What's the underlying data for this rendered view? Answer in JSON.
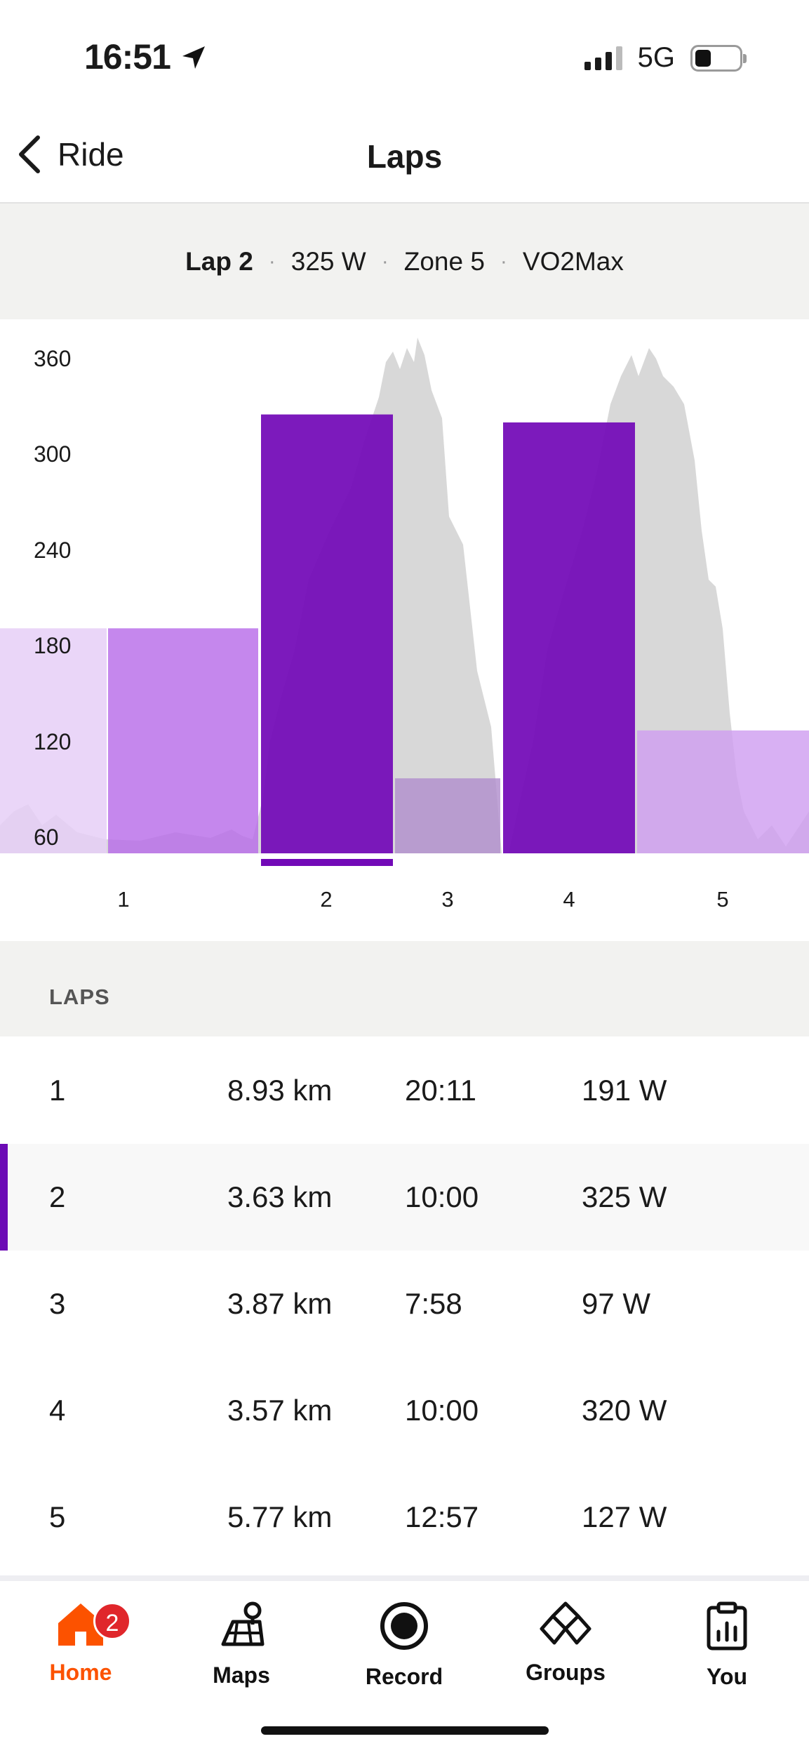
{
  "status_bar": {
    "time": "16:51",
    "network": "5G",
    "battery_level": 0.25
  },
  "header": {
    "back_label": "Ride",
    "title": "Laps"
  },
  "summary": {
    "lap": "Lap 2",
    "power": "325 W",
    "zone": "Zone 5",
    "type": "VO2Max"
  },
  "chart_data": {
    "type": "bar",
    "y_ticks": [
      "360",
      "300",
      "240",
      "180",
      "120",
      "60"
    ],
    "x_ticks": [
      "1",
      "2",
      "3",
      "4",
      "5"
    ],
    "ylim": [
      50,
      360
    ],
    "bars": [
      {
        "label": "1",
        "value": 191,
        "color": "#b86ce9"
      },
      {
        "label": "2",
        "value": 325,
        "color": "#7209b7",
        "selected": true
      },
      {
        "label": "3",
        "value": 97,
        "color": "#b18fcd"
      },
      {
        "label": "4",
        "value": 320,
        "color": "#7209b7"
      },
      {
        "label": "5",
        "value": 127,
        "color": "#cf9ff0"
      }
    ]
  },
  "laps": {
    "section_title": "LAPS",
    "rows": [
      {
        "lap": "1",
        "distance": "8.93 km",
        "time": "20:11",
        "power": "191 W"
      },
      {
        "lap": "2",
        "distance": "3.63 km",
        "time": "10:00",
        "power": "325 W"
      },
      {
        "lap": "3",
        "distance": "3.87 km",
        "time": "7:58",
        "power": "97 W"
      },
      {
        "lap": "4",
        "distance": "3.57 km",
        "time": "10:00",
        "power": "320 W"
      },
      {
        "lap": "5",
        "distance": "5.77 km",
        "time": "12:57",
        "power": "127 W"
      }
    ]
  },
  "tabs": {
    "badge_count": "2",
    "items": [
      {
        "label": "Home",
        "icon": "home-icon"
      },
      {
        "label": "Maps",
        "icon": "maps-icon"
      },
      {
        "label": "Record",
        "icon": "record-icon"
      },
      {
        "label": "Groups",
        "icon": "groups-icon"
      },
      {
        "label": "You",
        "icon": "you-icon"
      }
    ],
    "accent_color": "#fc5200"
  }
}
